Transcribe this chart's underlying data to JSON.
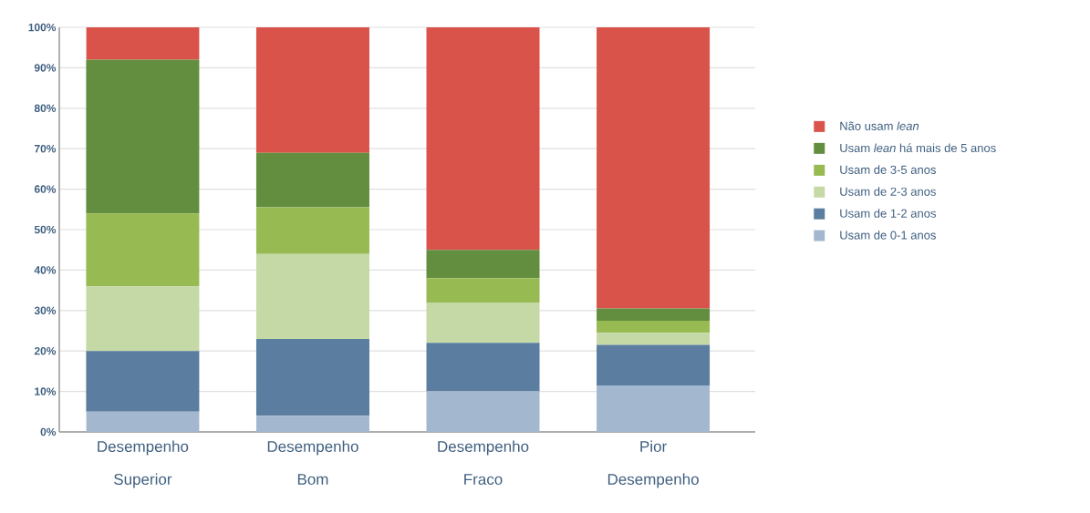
{
  "chart_data": {
    "type": "bar",
    "stacked": true,
    "categories": [
      "Desempenho Superior",
      "Desempenho Bom",
      "Desempenho Fraco",
      "Pior Desempenho"
    ],
    "series": [
      {
        "name": "Usam de 0-1 anos",
        "color": "#a3b8cf",
        "values": [
          5,
          4,
          10,
          11.5
        ]
      },
      {
        "name": "Usam de 1-2 anos",
        "color": "#5a7da0",
        "values": [
          15,
          19,
          12,
          10
        ]
      },
      {
        "name": "Usam de 2-3 anos",
        "color": "#c5d9a6",
        "values": [
          16,
          21,
          10,
          3
        ]
      },
      {
        "name": "Usam de 3-5 anos",
        "color": "#97ba53",
        "values": [
          18,
          11.5,
          6,
          3
        ]
      },
      {
        "name": "Usam *lean* há mais de 5 anos",
        "color": "#638e3f",
        "values": [
          38,
          13.5,
          7,
          3
        ]
      },
      {
        "name": "Não usam *lean*",
        "color": "#d9534a",
        "values": [
          8,
          31,
          55,
          69.5
        ]
      }
    ],
    "ylim": [
      0,
      100
    ],
    "yticks": [
      {
        "value": 0,
        "label": "0%"
      },
      {
        "value": 10,
        "label": "10%"
      },
      {
        "value": 20,
        "label": "20%"
      },
      {
        "value": 30,
        "label": "30%"
      },
      {
        "value": 40,
        "label": "40%"
      },
      {
        "value": 50,
        "label": "50%"
      },
      {
        "value": 60,
        "label": "60%"
      },
      {
        "value": 70,
        "label": "70%"
      },
      {
        "value": 80,
        "label": "80%"
      },
      {
        "value": 90,
        "label": "90%"
      },
      {
        "value": 100,
        "label": "100%"
      }
    ],
    "grid": "y",
    "legend": "right"
  }
}
